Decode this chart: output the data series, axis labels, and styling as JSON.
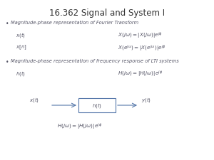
{
  "title": "16.362 Signal and System I",
  "title_fontsize": 8.5,
  "background_color": "#ffffff",
  "bullet1": "Magnitude-phase representation of Fourier Transform",
  "bullet2": "Magnitude-phase representation of frequency response of LTI systems",
  "text_color": "#555566",
  "box_color": "#5577aa",
  "bullet_fontsize": 4.8,
  "math_fontsize": 5.2,
  "label_fontsize": 5.0
}
